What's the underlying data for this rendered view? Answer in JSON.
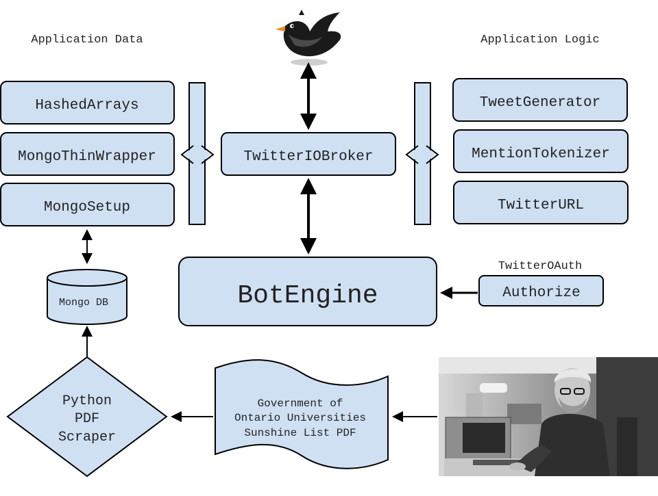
{
  "headings": {
    "data": "Application Data",
    "logic": "Application Logic"
  },
  "data_modules": [
    "HashedArrays",
    "MongoThinWrapper",
    "MongoSetup"
  ],
  "logic_modules": [
    "TweetGenerator",
    "MentionTokenizer",
    "TwitterURL"
  ],
  "broker": "TwitterIOBroker",
  "engine": "BotEngine",
  "oauth": {
    "group": "TwitterOAuth",
    "method": "Authorize"
  },
  "database": "Mongo DB",
  "scraper": [
    "Python",
    "PDF",
    "Scraper"
  ],
  "source_document": [
    "Government of",
    "Ontario Universities",
    "Sunshine List PDF"
  ],
  "icons": {
    "top": "twitter-bird-icon",
    "photo": "person-at-computer-photo"
  },
  "colors": {
    "box_fill": "#cfe0f2",
    "stroke": "#000000"
  }
}
